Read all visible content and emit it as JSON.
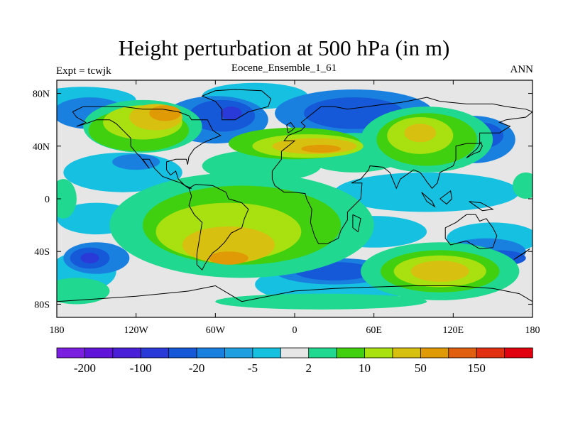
{
  "title": "Height perturbation at 500 hPa (in m)",
  "subtitle_left": "Expt = tcwjk",
  "subtitle_center": "Eocene_Ensemble_1_61",
  "subtitle_right": "ANN",
  "map": {
    "projection": "cylindrical equidistant",
    "lon_range": [
      -180,
      180
    ],
    "lat_range": [
      -90,
      90
    ],
    "lon_ticks": [
      {
        "value": -180,
        "label": "180"
      },
      {
        "value": -120,
        "label": "120W"
      },
      {
        "value": -60,
        "label": "60W"
      },
      {
        "value": 0,
        "label": "0"
      },
      {
        "value": 60,
        "label": "60E"
      },
      {
        "value": 120,
        "label": "120E"
      },
      {
        "value": 180,
        "label": "180"
      }
    ],
    "lat_ticks": [
      {
        "value": 80,
        "label": "80N"
      },
      {
        "value": 40,
        "label": "40N"
      },
      {
        "value": 0,
        "label": "0"
      },
      {
        "value": -40,
        "label": "40S"
      },
      {
        "value": -80,
        "label": "80S"
      }
    ],
    "background_color": "#e6e6e6",
    "coastline_color": "#000000"
  },
  "colorbar": {
    "colors": [
      "#7a1fe0",
      "#6015d8",
      "#4a1fd8",
      "#2a3ad8",
      "#1558d8",
      "#1a80e0",
      "#20a0e0",
      "#15c0e0",
      "#e6e6e6",
      "#20d890",
      "#40d010",
      "#a8e010",
      "#d8c010",
      "#e09a05",
      "#e06010",
      "#e03010",
      "#e00010"
    ],
    "labels": [
      "-200",
      "-100",
      "-20",
      "-5",
      "2",
      "10",
      "50",
      "150"
    ]
  },
  "regions": [
    {
      "level": 1,
      "color": "#15c0e0",
      "ellipses": [
        [
          -160,
          75,
          40,
          10
        ],
        [
          -130,
          20,
          45,
          15
        ],
        [
          -150,
          -15,
          30,
          12
        ],
        [
          -30,
          78,
          40,
          10
        ],
        [
          100,
          5,
          70,
          15
        ],
        [
          -160,
          -55,
          25,
          15
        ],
        [
          60,
          -25,
          40,
          12
        ],
        [
          30,
          -65,
          60,
          15
        ],
        [
          150,
          -30,
          35,
          12
        ]
      ]
    },
    {
      "level": 2,
      "color": "#1a80e0",
      "ellipses": [
        [
          -155,
          65,
          28,
          12
        ],
        [
          -60,
          60,
          40,
          18
        ],
        [
          45,
          65,
          60,
          18
        ],
        [
          135,
          45,
          32,
          18
        ],
        [
          -150,
          -45,
          25,
          12
        ],
        [
          30,
          -55,
          45,
          10
        ],
        [
          145,
          -40,
          30,
          10
        ],
        [
          -120,
          28,
          18,
          6
        ]
      ]
    },
    {
      "level": 3,
      "color": "#1558d8",
      "ellipses": [
        [
          -55,
          63,
          25,
          12
        ],
        [
          45,
          65,
          38,
          12
        ],
        [
          140,
          48,
          18,
          10
        ],
        [
          -155,
          -45,
          15,
          8
        ],
        [
          30,
          -55,
          30,
          7
        ],
        [
          155,
          -45,
          20,
          6
        ]
      ]
    },
    {
      "level": 4,
      "color": "#2a3ad8",
      "ellipses": [
        [
          -48,
          65,
          8,
          5
        ],
        [
          150,
          -45,
          6,
          3
        ],
        [
          -155,
          -45,
          7,
          4
        ]
      ]
    },
    {
      "level": 5,
      "color": "#20d890",
      "ellipses": [
        [
          -115,
          55,
          45,
          20
        ],
        [
          -25,
          25,
          45,
          12
        ],
        [
          45,
          35,
          40,
          15
        ],
        [
          100,
          45,
          50,
          25
        ],
        [
          -40,
          -20,
          100,
          40
        ],
        [
          110,
          -55,
          60,
          22
        ],
        [
          -165,
          -70,
          25,
          10
        ],
        [
          -175,
          0,
          10,
          15
        ],
        [
          175,
          10,
          10,
          10
        ],
        [
          20,
          -78,
          80,
          6
        ]
      ]
    },
    {
      "level": 6,
      "color": "#40d010",
      "ellipses": [
        [
          -118,
          52,
          38,
          16
        ],
        [
          0,
          42,
          50,
          12
        ],
        [
          100,
          45,
          38,
          20
        ],
        [
          -40,
          -20,
          75,
          30
        ],
        [
          110,
          -55,
          45,
          16
        ]
      ]
    },
    {
      "level": 7,
      "color": "#a8e010",
      "ellipses": [
        [
          -115,
          58,
          30,
          13
        ],
        [
          10,
          40,
          42,
          9
        ],
        [
          95,
          48,
          25,
          14
        ],
        [
          -50,
          -25,
          55,
          22
        ],
        [
          110,
          -55,
          35,
          12
        ]
      ]
    },
    {
      "level": 8,
      "color": "#d8c010",
      "ellipses": [
        [
          -105,
          62,
          20,
          10
        ],
        [
          15,
          40,
          32,
          6
        ],
        [
          95,
          50,
          12,
          7
        ],
        [
          -50,
          -35,
          35,
          14
        ],
        [
          110,
          -55,
          22,
          8
        ]
      ]
    },
    {
      "level": 9,
      "color": "#e09a05",
      "ellipses": [
        [
          -98,
          65,
          12,
          6
        ],
        [
          20,
          38,
          15,
          3
        ],
        [
          -50,
          -45,
          15,
          5
        ]
      ]
    }
  ],
  "coastlines": [
    [
      [
        -168,
        66
      ],
      [
        -160,
        70
      ],
      [
        -145,
        70
      ],
      [
        -130,
        70
      ],
      [
        -115,
        68
      ],
      [
        -100,
        68
      ],
      [
        -88,
        66
      ],
      [
        -80,
        63
      ],
      [
        -78,
        60
      ],
      [
        -66,
        60
      ],
      [
        -62,
        52
      ],
      [
        -56,
        48
      ],
      [
        -66,
        44
      ],
      [
        -70,
        42
      ],
      [
        -76,
        38
      ],
      [
        -80,
        32
      ],
      [
        -81,
        26
      ],
      [
        -82,
        30
      ],
      [
        -90,
        30
      ],
      [
        -97,
        28
      ],
      [
        -97,
        22
      ],
      [
        -94,
        18
      ],
      [
        -90,
        21
      ],
      [
        -88,
        15
      ],
      [
        -83,
        10
      ],
      [
        -78,
        8
      ],
      [
        -80,
        8
      ],
      [
        -86,
        12
      ],
      [
        -92,
        14
      ],
      [
        -100,
        17
      ],
      [
        -106,
        23
      ],
      [
        -110,
        30
      ],
      [
        -115,
        30
      ],
      [
        -110,
        23
      ],
      [
        -117,
        32
      ],
      [
        -120,
        35
      ],
      [
        -124,
        40
      ],
      [
        -124,
        46
      ],
      [
        -128,
        50
      ],
      [
        -135,
        57
      ],
      [
        -140,
        60
      ],
      [
        -150,
        60
      ],
      [
        -158,
        57
      ],
      [
        -165,
        55
      ],
      [
        -158,
        58
      ],
      [
        -165,
        62
      ],
      [
        -168,
        66
      ]
    ],
    [
      [
        -80,
        8
      ],
      [
        -75,
        11
      ],
      [
        -62,
        10
      ],
      [
        -52,
        5
      ],
      [
        -50,
        0
      ],
      [
        -40,
        -3
      ],
      [
        -35,
        -8
      ],
      [
        -38,
        -15
      ],
      [
        -40,
        -22
      ],
      [
        -48,
        -26
      ],
      [
        -53,
        -33
      ],
      [
        -58,
        -38
      ],
      [
        -62,
        -41
      ],
      [
        -65,
        -45
      ],
      [
        -68,
        -50
      ],
      [
        -70,
        -54
      ],
      [
        -74,
        -50
      ],
      [
        -74,
        -42
      ],
      [
        -72,
        -30
      ],
      [
        -70,
        -18
      ],
      [
        -76,
        -12
      ],
      [
        -80,
        -5
      ],
      [
        -78,
        2
      ],
      [
        -80,
        8
      ]
    ],
    [
      [
        -55,
        60
      ],
      [
        -45,
        60
      ],
      [
        -35,
        66
      ],
      [
        -20,
        70
      ],
      [
        -18,
        76
      ],
      [
        -25,
        82
      ],
      [
        -45,
        83
      ],
      [
        -60,
        82
      ],
      [
        -70,
        78
      ],
      [
        -60,
        74
      ],
      [
        -55,
        68
      ],
      [
        -55,
        60
      ]
    ],
    [
      [
        -10,
        36
      ],
      [
        0,
        44
      ],
      [
        -8,
        44
      ],
      [
        -5,
        48
      ],
      [
        5,
        52
      ],
      [
        8,
        55
      ],
      [
        5,
        58
      ],
      [
        10,
        62
      ],
      [
        20,
        70
      ],
      [
        30,
        70
      ],
      [
        40,
        68
      ],
      [
        55,
        70
      ],
      [
        70,
        72
      ],
      [
        80,
        73
      ],
      [
        100,
        77
      ],
      [
        110,
        74
      ],
      [
        130,
        72
      ],
      [
        150,
        72
      ],
      [
        160,
        70
      ],
      [
        175,
        68
      ],
      [
        180,
        66
      ],
      [
        175,
        62
      ],
      [
        160,
        60
      ],
      [
        155,
        58
      ],
      [
        163,
        55
      ],
      [
        155,
        50
      ],
      [
        140,
        50
      ],
      [
        140,
        42
      ],
      [
        130,
        42
      ],
      [
        122,
        40
      ],
      [
        122,
        30
      ],
      [
        120,
        25
      ],
      [
        110,
        20
      ],
      [
        108,
        12
      ],
      [
        104,
        8
      ],
      [
        100,
        13
      ],
      [
        98,
        16
      ],
      [
        95,
        20
      ],
      [
        90,
        22
      ],
      [
        80,
        15
      ],
      [
        77,
        8
      ],
      [
        72,
        20
      ],
      [
        67,
        24
      ],
      [
        57,
        25
      ],
      [
        56,
        22
      ],
      [
        50,
        15
      ],
      [
        45,
        13
      ],
      [
        43,
        12
      ],
      [
        51,
        12
      ],
      [
        50,
        0
      ],
      [
        40,
        -10
      ],
      [
        40,
        -16
      ],
      [
        35,
        -24
      ],
      [
        33,
        -30
      ],
      [
        25,
        -34
      ],
      [
        18,
        -34
      ],
      [
        15,
        -28
      ],
      [
        12,
        -18
      ],
      [
        13,
        -8
      ],
      [
        9,
        0
      ],
      [
        8,
        4
      ],
      [
        0,
        5
      ],
      [
        -8,
        5
      ],
      [
        -15,
        10
      ],
      [
        -17,
        15
      ],
      [
        -17,
        21
      ],
      [
        -10,
        30
      ],
      [
        -10,
        36
      ]
    ],
    [
      [
        114,
        -22
      ],
      [
        122,
        -18
      ],
      [
        130,
        -12
      ],
      [
        137,
        -12
      ],
      [
        140,
        -17
      ],
      [
        145,
        -15
      ],
      [
        150,
        -22
      ],
      [
        153,
        -28
      ],
      [
        150,
        -37
      ],
      [
        140,
        -38
      ],
      [
        135,
        -35
      ],
      [
        130,
        -32
      ],
      [
        118,
        -35
      ],
      [
        114,
        -30
      ],
      [
        114,
        -22
      ]
    ],
    [
      [
        -180,
        -78
      ],
      [
        -150,
        -76
      ],
      [
        -120,
        -74
      ],
      [
        -100,
        -72
      ],
      [
        -80,
        -70
      ],
      [
        -60,
        -66
      ],
      [
        -50,
        -72
      ],
      [
        -40,
        -78
      ],
      [
        -20,
        -74
      ],
      [
        0,
        -70
      ],
      [
        30,
        -68
      ],
      [
        60,
        -67
      ],
      [
        90,
        -66
      ],
      [
        120,
        -66
      ],
      [
        150,
        -68
      ],
      [
        170,
        -72
      ],
      [
        180,
        -78
      ]
    ],
    [
      [
        -5,
        50
      ],
      [
        -2,
        52
      ],
      [
        0,
        54
      ],
      [
        -3,
        58
      ],
      [
        -6,
        56
      ],
      [
        -5,
        50
      ]
    ],
    [
      [
        130,
        31
      ],
      [
        135,
        34
      ],
      [
        140,
        36
      ],
      [
        142,
        40
      ],
      [
        141,
        43
      ],
      [
        138,
        38
      ],
      [
        132,
        33
      ],
      [
        130,
        31
      ]
    ],
    [
      [
        96,
        5
      ],
      [
        104,
        -2
      ],
      [
        106,
        -6
      ],
      [
        100,
        -2
      ],
      [
        96,
        5
      ]
    ],
    [
      [
        110,
        0
      ],
      [
        118,
        6
      ],
      [
        119,
        0
      ],
      [
        115,
        -4
      ],
      [
        110,
        0
      ]
    ],
    [
      [
        132,
        -2
      ],
      [
        141,
        -3
      ],
      [
        150,
        -8
      ],
      [
        142,
        -9
      ],
      [
        132,
        -2
      ]
    ],
    [
      [
        44,
        -12
      ],
      [
        50,
        -15
      ],
      [
        48,
        -25
      ],
      [
        44,
        -22
      ],
      [
        44,
        -12
      ]
    ],
    [
      [
        166,
        -46
      ],
      [
        174,
        -41
      ],
      [
        178,
        -38
      ],
      [
        172,
        -42
      ],
      [
        166,
        -46
      ]
    ]
  ]
}
